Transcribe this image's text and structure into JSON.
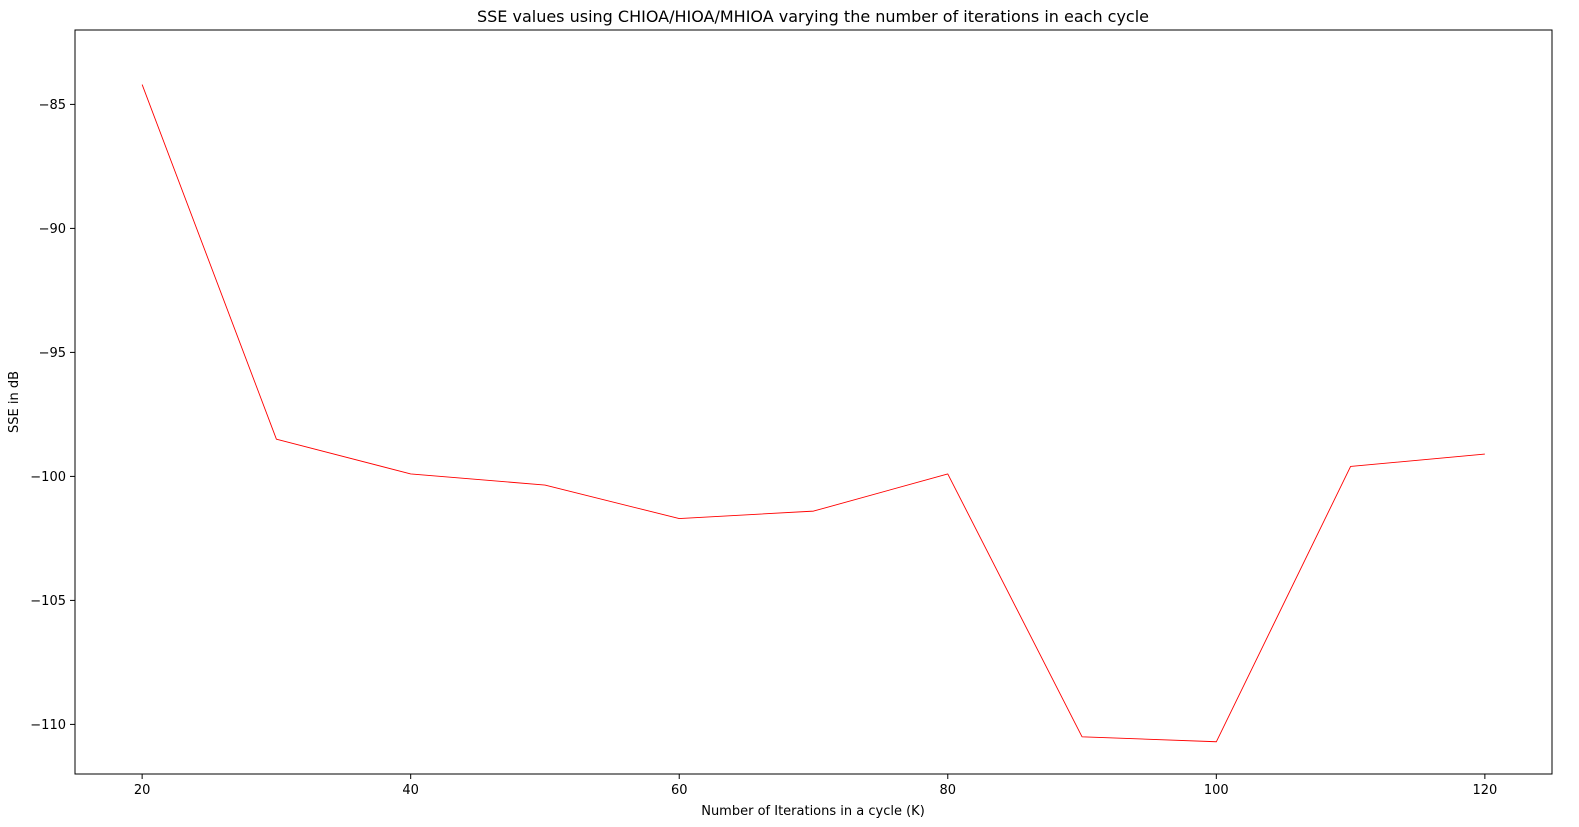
{
  "chart_data": {
    "type": "line",
    "title": "SSE values using CHIOA/HIOA/MHIOA varying the number of iterations in each cycle",
    "xlabel": "Number of Iterations in a cycle (K)",
    "ylabel": "SSE in dB",
    "xlim": [
      15,
      125
    ],
    "ylim": [
      -112,
      -82
    ],
    "xticks": [
      20,
      40,
      60,
      80,
      100,
      120
    ],
    "yticks": [
      -85,
      -90,
      -95,
      -100,
      -105,
      -110
    ],
    "xtick_labels": [
      "20",
      "40",
      "60",
      "80",
      "100",
      "120"
    ],
    "ytick_labels": [
      "−85",
      "−90",
      "−95",
      "−100",
      "−105",
      "−110"
    ],
    "grid": false,
    "series": [
      {
        "color": "#ff0000",
        "x": [
          20,
          30,
          40,
          50,
          60,
          70,
          80,
          90,
          100,
          110,
          120
        ],
        "y": [
          -84.2,
          -98.5,
          -99.9,
          -100.35,
          -101.7,
          -101.4,
          -99.9,
          -110.5,
          -110.7,
          -99.6,
          -99.1
        ]
      }
    ]
  }
}
